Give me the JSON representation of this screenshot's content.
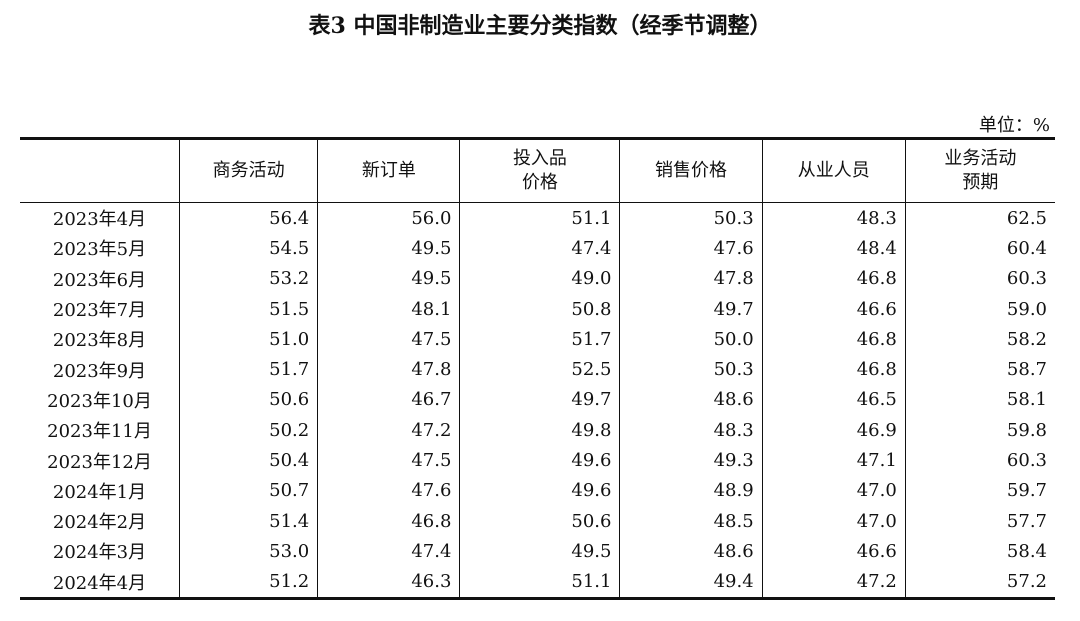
{
  "title": "表3 中国非制造业主要分类指数（经季节调整）",
  "unit": "单位：%",
  "header": {
    "columns": [
      [
        "商务活动"
      ],
      [
        "新订单"
      ],
      [
        "投入品",
        "价格"
      ],
      [
        "销售价格"
      ],
      [
        "从业人员"
      ],
      [
        "业务活动",
        "预期"
      ]
    ]
  },
  "table": {
    "rows": [
      [
        "2023年4月",
        "56.4",
        "56.0",
        "51.1",
        "50.3",
        "48.3",
        "62.5"
      ],
      [
        "2023年5月",
        "54.5",
        "49.5",
        "47.4",
        "47.6",
        "48.4",
        "60.4"
      ],
      [
        "2023年6月",
        "53.2",
        "49.5",
        "49.0",
        "47.8",
        "46.8",
        "60.3"
      ],
      [
        "2023年7月",
        "51.5",
        "48.1",
        "50.8",
        "49.7",
        "46.6",
        "59.0"
      ],
      [
        "2023年8月",
        "51.0",
        "47.5",
        "51.7",
        "50.0",
        "46.8",
        "58.2"
      ],
      [
        "2023年9月",
        "51.7",
        "47.8",
        "52.5",
        "50.3",
        "46.8",
        "58.7"
      ],
      [
        "2023年10月",
        "50.6",
        "46.7",
        "49.7",
        "48.6",
        "46.5",
        "58.1"
      ],
      [
        "2023年11月",
        "50.2",
        "47.2",
        "49.8",
        "48.3",
        "46.9",
        "59.8"
      ],
      [
        "2023年12月",
        "50.4",
        "47.5",
        "49.6",
        "49.3",
        "47.1",
        "60.3"
      ],
      [
        "2024年1月",
        "50.7",
        "47.6",
        "49.6",
        "48.9",
        "47.0",
        "59.7"
      ],
      [
        "2024年2月",
        "51.4",
        "46.8",
        "50.6",
        "48.5",
        "47.0",
        "57.7"
      ],
      [
        "2024年3月",
        "53.0",
        "47.4",
        "49.5",
        "48.6",
        "46.6",
        "58.4"
      ],
      [
        "2024年4月",
        "51.2",
        "46.3",
        "51.1",
        "49.4",
        "47.2",
        "57.2"
      ]
    ]
  }
}
